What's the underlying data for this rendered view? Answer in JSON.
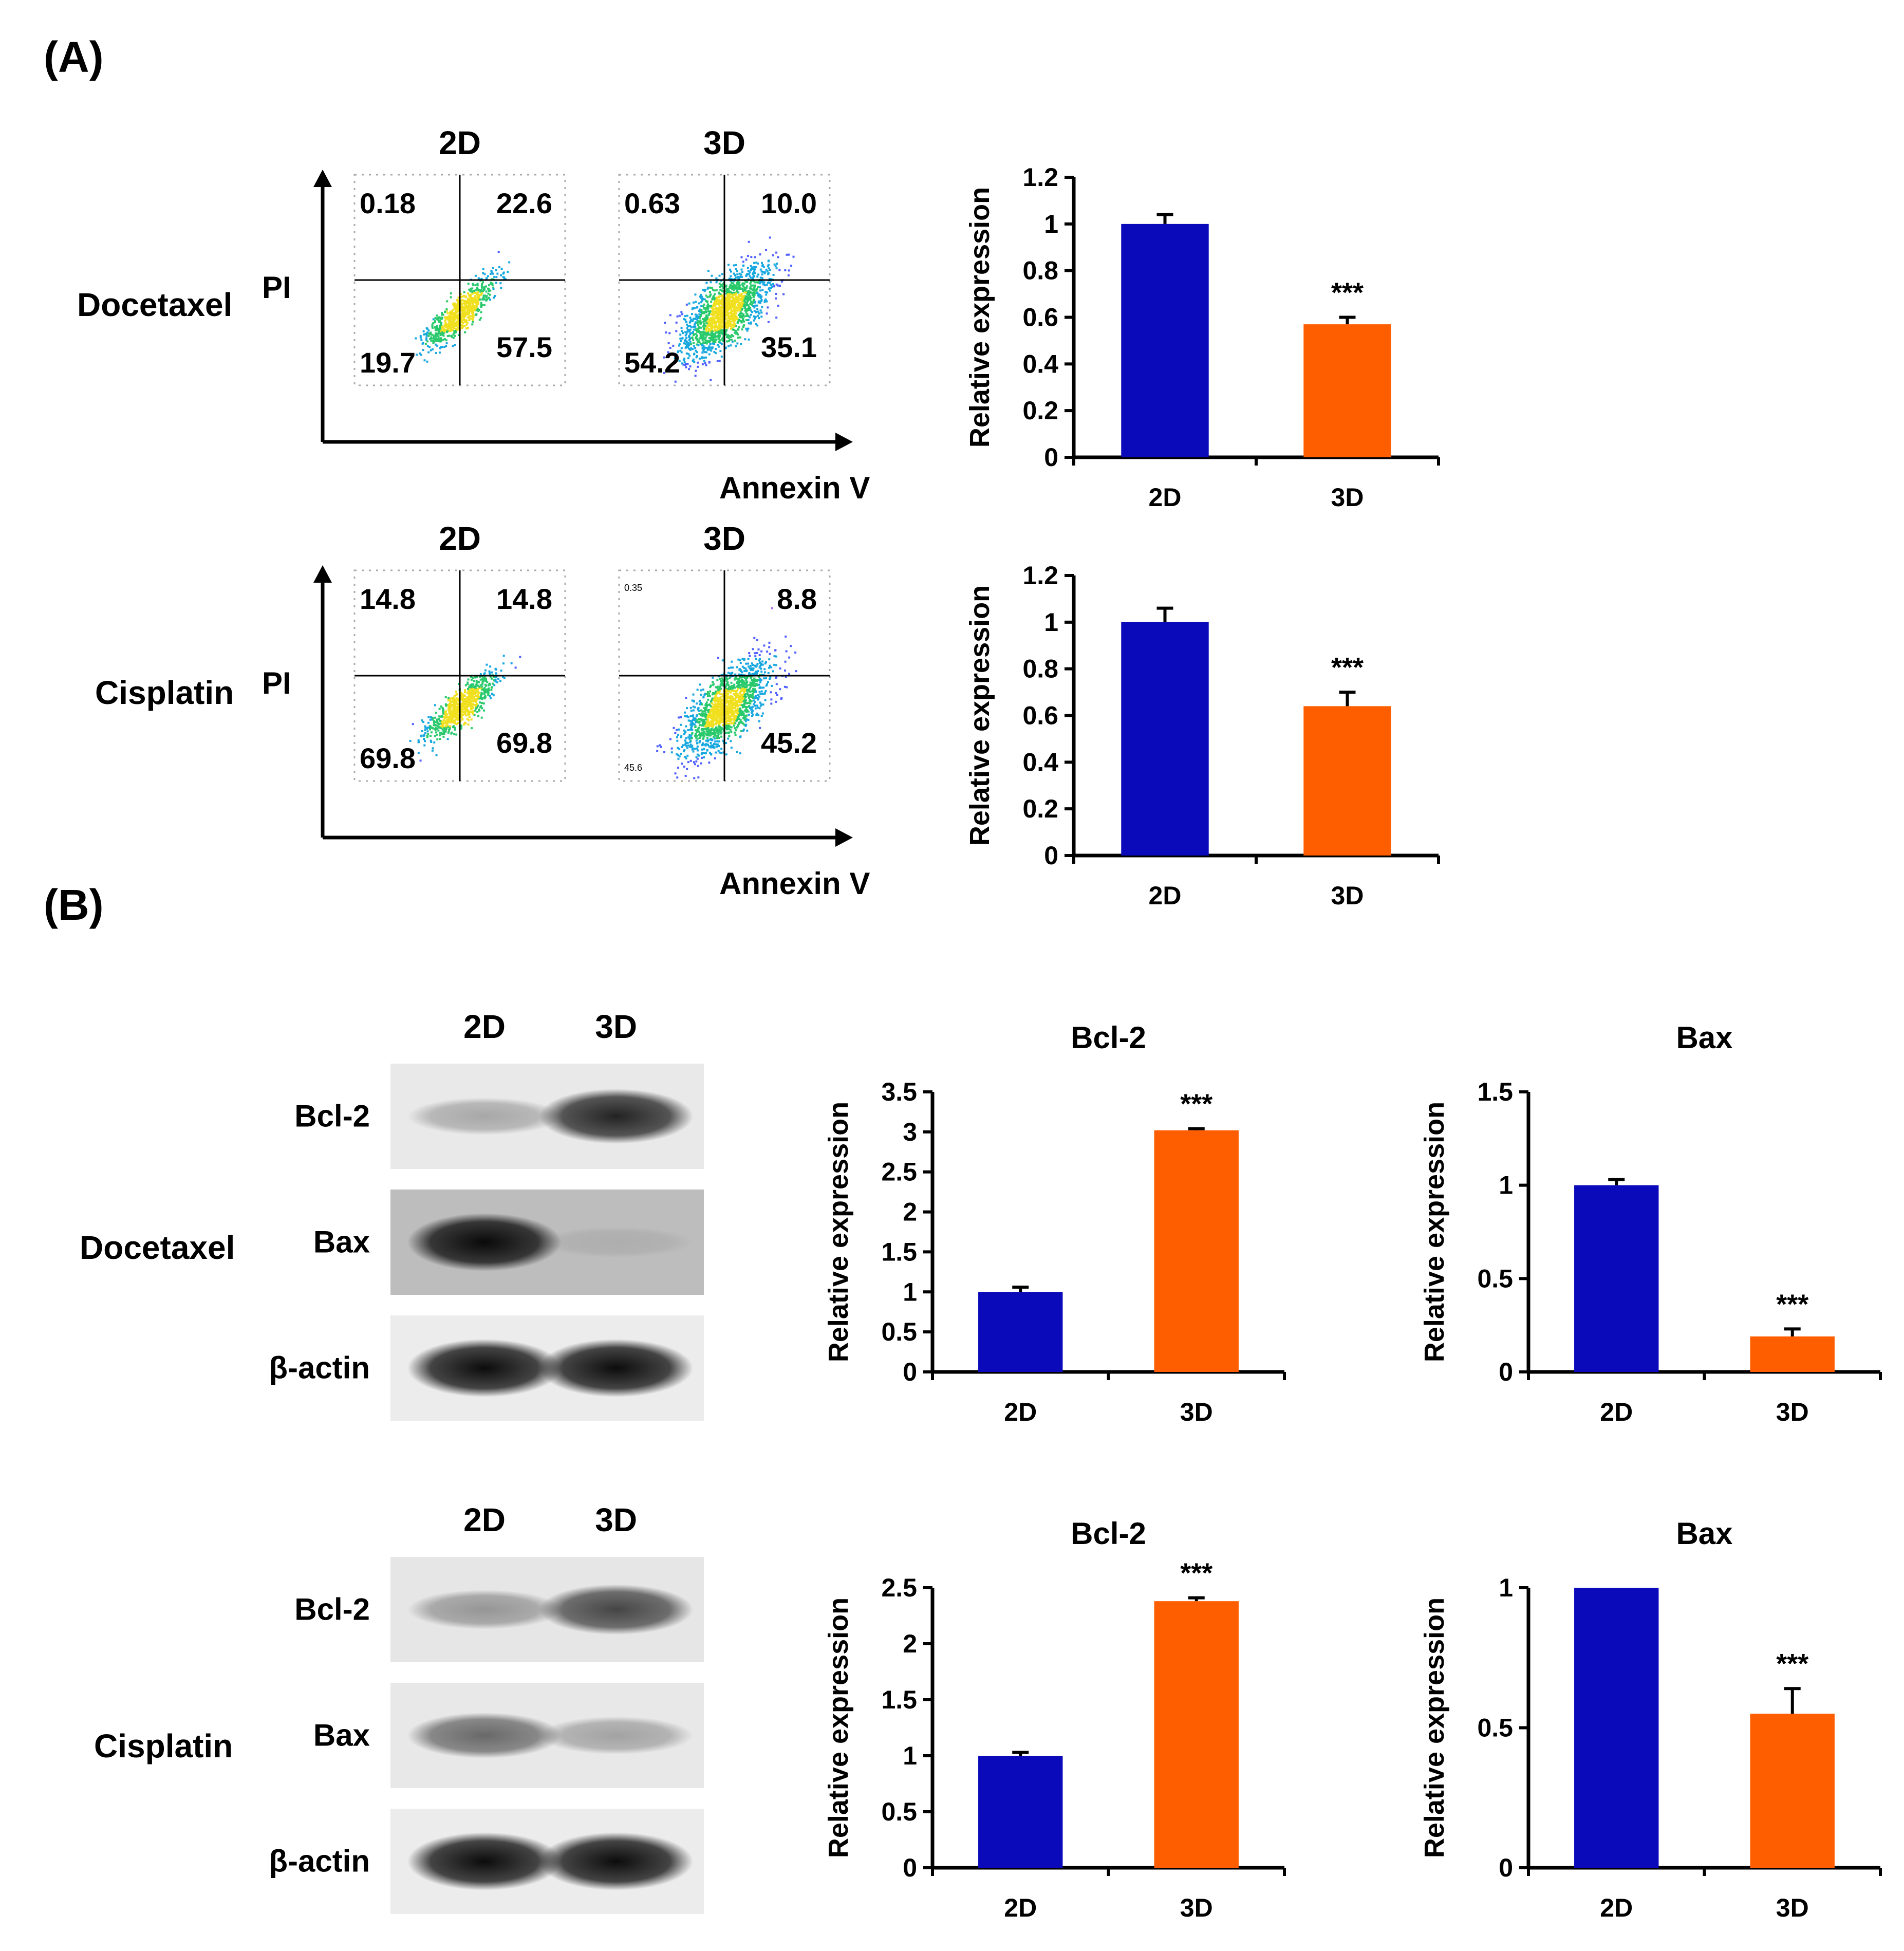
{
  "panels": {
    "A": "(A)",
    "B": "(B)"
  },
  "drugs": {
    "docetaxel": "Docetaxel",
    "cisplatin": "Cisplatin"
  },
  "flow_axes": {
    "y": "PI",
    "x": "Annexin V"
  },
  "flow": [
    {
      "drug": "Docetaxel",
      "plots": [
        {
          "title": "2D",
          "ul": "0.18",
          "ur": "22.6",
          "ll": "19.7",
          "lr": "57.5",
          "spread": 0.35
        },
        {
          "title": "3D",
          "ul": "0.63",
          "ur": "10.0",
          "ll": "54.2",
          "lr": "35.1",
          "spread": 1.0
        }
      ]
    },
    {
      "drug": "Cisplatin",
      "plots": [
        {
          "title": "2D",
          "ul": "14.8",
          "ur": "14.8",
          "ll": "69.8",
          "lr": "69.8",
          "spread": 0.35
        },
        {
          "title": "3D",
          "ul": "0.35",
          "ur": "8.8",
          "ll": "45.6",
          "lr": "45.2",
          "spread": 1.0,
          "small": true
        }
      ]
    }
  ],
  "blots": [
    {
      "drug": "Docetaxel",
      "lanes": [
        "2D",
        "3D"
      ],
      "rows": [
        {
          "label": "Bcl-2",
          "bg": "#e9e9e9",
          "bands": [
            0.28,
            0.85
          ]
        },
        {
          "label": "Bax",
          "bg": "#bdbdbd",
          "bands": [
            0.95,
            0.08
          ]
        },
        {
          "label": "β-actin",
          "bg": "#ececec",
          "bands": [
            0.95,
            0.95
          ]
        }
      ]
    },
    {
      "drug": "Cisplatin",
      "lanes": [
        "2D",
        "3D"
      ],
      "rows": [
        {
          "label": "Bcl-2",
          "bg": "#e6e6e6",
          "bands": [
            0.35,
            0.7
          ]
        },
        {
          "label": "Bax",
          "bg": "#e8e8e8",
          "bands": [
            0.55,
            0.3
          ]
        },
        {
          "label": "β-actin",
          "bg": "#ececec",
          "bands": [
            0.95,
            0.95
          ]
        }
      ]
    }
  ],
  "colors": {
    "c2d": "#0a0aba",
    "c3d": "#ff5e00"
  },
  "chart_data": [
    {
      "type": "bar",
      "title": "",
      "ylabel": "Relative expression",
      "categories": [
        "2D",
        "3D"
      ],
      "values": [
        1.0,
        0.57
      ],
      "errors": [
        0.04,
        0.03
      ],
      "ylim": [
        0,
        1.2
      ],
      "yticks": [
        "0",
        "0.2",
        "0.4",
        "0.6",
        "0.8",
        "1",
        "1.2"
      ],
      "annotations": [
        "",
        "***"
      ]
    },
    {
      "type": "bar",
      "title": "",
      "ylabel": "Relative expression",
      "categories": [
        "2D",
        "3D"
      ],
      "values": [
        1.0,
        0.64
      ],
      "errors": [
        0.06,
        0.06
      ],
      "ylim": [
        0,
        1.2
      ],
      "yticks": [
        "0",
        "0.2",
        "0.4",
        "0.6",
        "0.8",
        "1",
        "1.2"
      ],
      "annotations": [
        "",
        "***"
      ]
    },
    {
      "type": "bar",
      "title": "Bcl-2",
      "ylabel": "Relative expression",
      "categories": [
        "2D",
        "3D"
      ],
      "values": [
        1.0,
        3.02
      ],
      "errors": [
        0.06,
        0.02
      ],
      "ylim": [
        0,
        3.5
      ],
      "yticks": [
        "0",
        "0.5",
        "1",
        "1.5",
        "2",
        "2.5",
        "3",
        "3.5"
      ],
      "annotations": [
        "",
        "***"
      ]
    },
    {
      "type": "bar",
      "title": "Bax",
      "ylabel": "Relative expression",
      "categories": [
        "2D",
        "3D"
      ],
      "values": [
        1.0,
        0.19
      ],
      "errors": [
        0.03,
        0.04
      ],
      "ylim": [
        0,
        1.5
      ],
      "yticks": [
        "0",
        "0.5",
        "1",
        "1.5"
      ],
      "annotations": [
        "",
        "***"
      ]
    },
    {
      "type": "bar",
      "title": "Bcl-2",
      "ylabel": "Relative expression",
      "categories": [
        "2D",
        "3D"
      ],
      "values": [
        1.0,
        2.38
      ],
      "errors": [
        0.03,
        0.03
      ],
      "ylim": [
        0,
        2.5
      ],
      "yticks": [
        "0",
        "0.5",
        "1",
        "1.5",
        "2",
        "2.5"
      ],
      "annotations": [
        "",
        "***"
      ]
    },
    {
      "type": "bar",
      "title": "Bax",
      "ylabel": "Relative expression",
      "categories": [
        "2D",
        "3D"
      ],
      "values": [
        1.0,
        0.55
      ],
      "errors": [
        0.0,
        0.09
      ],
      "ylim": [
        0,
        1
      ],
      "yticks": [
        "0",
        "0.5",
        "1"
      ],
      "annotations": [
        "",
        "***"
      ]
    }
  ]
}
